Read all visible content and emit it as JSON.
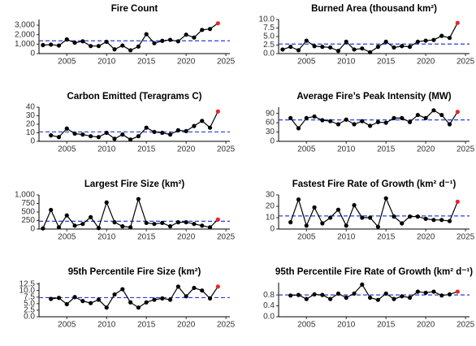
{
  "chart_data": [
    {
      "type": "line",
      "title": "Fire Count",
      "x": [
        2002,
        2003,
        2004,
        2005,
        2006,
        2007,
        2008,
        2009,
        2010,
        2011,
        2012,
        2013,
        2014,
        2015,
        2016,
        2017,
        2018,
        2019,
        2020,
        2021,
        2022,
        2023,
        2024
      ],
      "values": [
        900,
        950,
        850,
        1500,
        1150,
        1300,
        800,
        800,
        1250,
        450,
        850,
        350,
        750,
        2050,
        1100,
        1350,
        1450,
        1300,
        2000,
        1700,
        2500,
        2600,
        3200
      ],
      "xlim": [
        2001.5,
        2025.5
      ],
      "xticks": [
        2005,
        2010,
        2015,
        2020,
        2025
      ],
      "ylim": [
        0,
        3600
      ],
      "yticks": [
        0,
        {
          "value": 1000,
          "label": "1,000"
        },
        {
          "value": 2000,
          "label": "2,000"
        },
        {
          "value": 3000,
          "label": "3,000"
        }
      ],
      "hline": 1350,
      "color": "#000000",
      "highlight_color": "#e8262a",
      "hline_color": "#2b3bd6"
    },
    {
      "type": "line",
      "title": "Burned Area (thousand km²)",
      "x": [
        2002,
        2003,
        2004,
        2005,
        2006,
        2007,
        2008,
        2009,
        2010,
        2011,
        2012,
        2013,
        2014,
        2015,
        2016,
        2017,
        2018,
        2019,
        2020,
        2021,
        2022,
        2023,
        2024
      ],
      "values": [
        1.2,
        2.0,
        1.0,
        3.8,
        2.2,
        2.0,
        1.8,
        0.8,
        3.5,
        1.2,
        1.5,
        0.4,
        2.0,
        3.5,
        1.8,
        2.2,
        2.0,
        3.5,
        3.8,
        4.0,
        5.2,
        4.6,
        9.0
      ],
      "xlim": [
        2001.5,
        2025.5
      ],
      "xticks": [
        2005,
        2010,
        2015,
        2020,
        2025
      ],
      "ylim": [
        0,
        10
      ],
      "yticks": [
        {
          "value": 0,
          "label": "0.0"
        },
        2.5,
        {
          "value": 5,
          "label": "5.0"
        },
        7.5,
        {
          "value": 10,
          "label": "10.0"
        }
      ],
      "hline": 2.8,
      "color": "#000000",
      "highlight_color": "#e8262a",
      "hline_color": "#2b3bd6"
    },
    {
      "type": "line",
      "title": "Carbon Emitted (Teragrams C)",
      "x": [
        2002,
        2003,
        2004,
        2005,
        2006,
        2007,
        2008,
        2009,
        2010,
        2011,
        2012,
        2013,
        2014,
        2015,
        2016,
        2017,
        2018,
        2019,
        2020,
        2021,
        2022,
        2023,
        2024
      ],
      "values": [
        null,
        7,
        5,
        15,
        9,
        8,
        6,
        5,
        10,
        3,
        8,
        2,
        6,
        16,
        11,
        10,
        8,
        13,
        12,
        18,
        24,
        16,
        35
      ],
      "xlim": [
        2001.5,
        2025.5
      ],
      "xticks": [
        2005,
        2010,
        2015,
        2020,
        2025
      ],
      "ylim": [
        0,
        40
      ],
      "yticks": [
        0,
        10,
        20,
        30,
        40
      ],
      "hline": 11,
      "color": "#000000",
      "highlight_color": "#e8262a",
      "hline_color": "#2b3bd6"
    },
    {
      "type": "line",
      "title": "Average Fire’s Peak Intensity (MW)",
      "x": [
        2002,
        2003,
        2004,
        2005,
        2006,
        2007,
        2008,
        2009,
        2010,
        2011,
        2012,
        2013,
        2014,
        2015,
        2016,
        2017,
        2018,
        2019,
        2020,
        2021,
        2022,
        2023,
        2024
      ],
      "values": [
        null,
        75,
        42,
        75,
        80,
        68,
        65,
        55,
        70,
        55,
        65,
        50,
        62,
        60,
        75,
        75,
        62,
        85,
        75,
        100,
        85,
        55,
        95
      ],
      "xlim": [
        2001.5,
        2025.5
      ],
      "xticks": [
        2005,
        2010,
        2015,
        2020,
        2025
      ],
      "ylim": [
        0,
        110
      ],
      "yticks": [
        0,
        30,
        60,
        90
      ],
      "hline": 69,
      "color": "#000000",
      "highlight_color": "#e8262a",
      "hline_color": "#2b3bd6"
    },
    {
      "type": "line",
      "title": "Largest Fire Size (km²)",
      "x": [
        2002,
        2003,
        2004,
        2005,
        2006,
        2007,
        2008,
        2009,
        2010,
        2011,
        2012,
        2013,
        2014,
        2015,
        2016,
        2017,
        2018,
        2019,
        2020,
        2021,
        2022,
        2023,
        2024
      ],
      "values": [
        20,
        560,
        50,
        400,
        100,
        150,
        350,
        30,
        780,
        200,
        80,
        50,
        880,
        180,
        150,
        180,
        80,
        200,
        200,
        150,
        100,
        50,
        280
      ],
      "xlim": [
        2001.5,
        2025.5
      ],
      "xticks": [
        2005,
        2010,
        2015,
        2020,
        2025
      ],
      "ylim": [
        0,
        1000
      ],
      "yticks": [
        0,
        250,
        500,
        750,
        {
          "value": 1000,
          "label": "1,000"
        }
      ],
      "hline": 230,
      "color": "#000000",
      "highlight_color": "#e8262a",
      "hline_color": "#2b3bd6"
    },
    {
      "type": "line",
      "title": "Fastest Fire Rate of Growth (km² d⁻¹)",
      "x": [
        2002,
        2003,
        2004,
        2005,
        2006,
        2007,
        2008,
        2009,
        2010,
        2011,
        2012,
        2013,
        2014,
        2015,
        2016,
        2017,
        2018,
        2019,
        2020,
        2021,
        2022,
        2023,
        2024
      ],
      "values": [
        null,
        6,
        26,
        3,
        19,
        5,
        10,
        17,
        3,
        21,
        10,
        10,
        2,
        27,
        11,
        5,
        11,
        11,
        9,
        8,
        8,
        7,
        24
      ],
      "xlim": [
        2001.5,
        2025.5
      ],
      "xticks": [
        2005,
        2010,
        2015,
        2020,
        2025
      ],
      "ylim": [
        0,
        30
      ],
      "yticks": [
        0,
        10,
        20,
        30
      ],
      "hline": 11.5,
      "color": "#000000",
      "highlight_color": "#e8262a",
      "hline_color": "#2b3bd6"
    },
    {
      "type": "line",
      "title": "95th Percentile Fire Size (km²)",
      "x": [
        2002,
        2003,
        2004,
        2005,
        2006,
        2007,
        2008,
        2009,
        2010,
        2011,
        2012,
        2013,
        2014,
        2015,
        2016,
        2017,
        2018,
        2019,
        2020,
        2021,
        2022,
        2023,
        2024
      ],
      "values": [
        null,
        6.8,
        7.2,
        4.8,
        7.5,
        6.0,
        5.2,
        6.5,
        3.5,
        8.5,
        10.5,
        5.5,
        3.5,
        5.5,
        6.5,
        7.0,
        6.5,
        11.5,
        7.8,
        11.0,
        10.0,
        7.0,
        11.5
      ],
      "xlim": [
        2001.5,
        2025.5
      ],
      "xticks": [
        2005,
        2010,
        2015,
        2020,
        2025
      ],
      "ylim": [
        0,
        13
      ],
      "yticks": [
        {
          "value": 0,
          "label": "0.0"
        },
        2.5,
        {
          "value": 5,
          "label": "5.0"
        },
        7.5,
        {
          "value": 10,
          "label": "10.0"
        },
        12.5
      ],
      "hline": 7.3,
      "color": "#000000",
      "highlight_color": "#e8262a",
      "hline_color": "#2b3bd6"
    },
    {
      "type": "line",
      "title": "95th Percentile Fire Rate of Growth (km² d⁻¹)",
      "x": [
        2002,
        2003,
        2004,
        2005,
        2006,
        2007,
        2008,
        2009,
        2010,
        2011,
        2012,
        2013,
        2014,
        2015,
        2016,
        2017,
        2018,
        2019,
        2020,
        2021,
        2022,
        2023,
        2024
      ],
      "values": [
        null,
        0.78,
        0.8,
        0.65,
        0.82,
        0.8,
        0.65,
        0.85,
        0.7,
        0.85,
        1.18,
        0.7,
        0.62,
        0.85,
        0.65,
        0.75,
        0.7,
        0.92,
        0.88,
        0.92,
        0.78,
        0.82,
        0.92
      ],
      "xlim": [
        2001.5,
        2025.5
      ],
      "xticks": [
        2005,
        2010,
        2015,
        2020,
        2025
      ],
      "ylim": [
        0,
        1.25
      ],
      "yticks": [
        {
          "value": 0,
          "label": "0.0"
        },
        0.4,
        0.8
      ],
      "hline": 0.8,
      "color": "#000000",
      "highlight_color": "#e8262a",
      "hline_color": "#2b3bd6"
    }
  ]
}
